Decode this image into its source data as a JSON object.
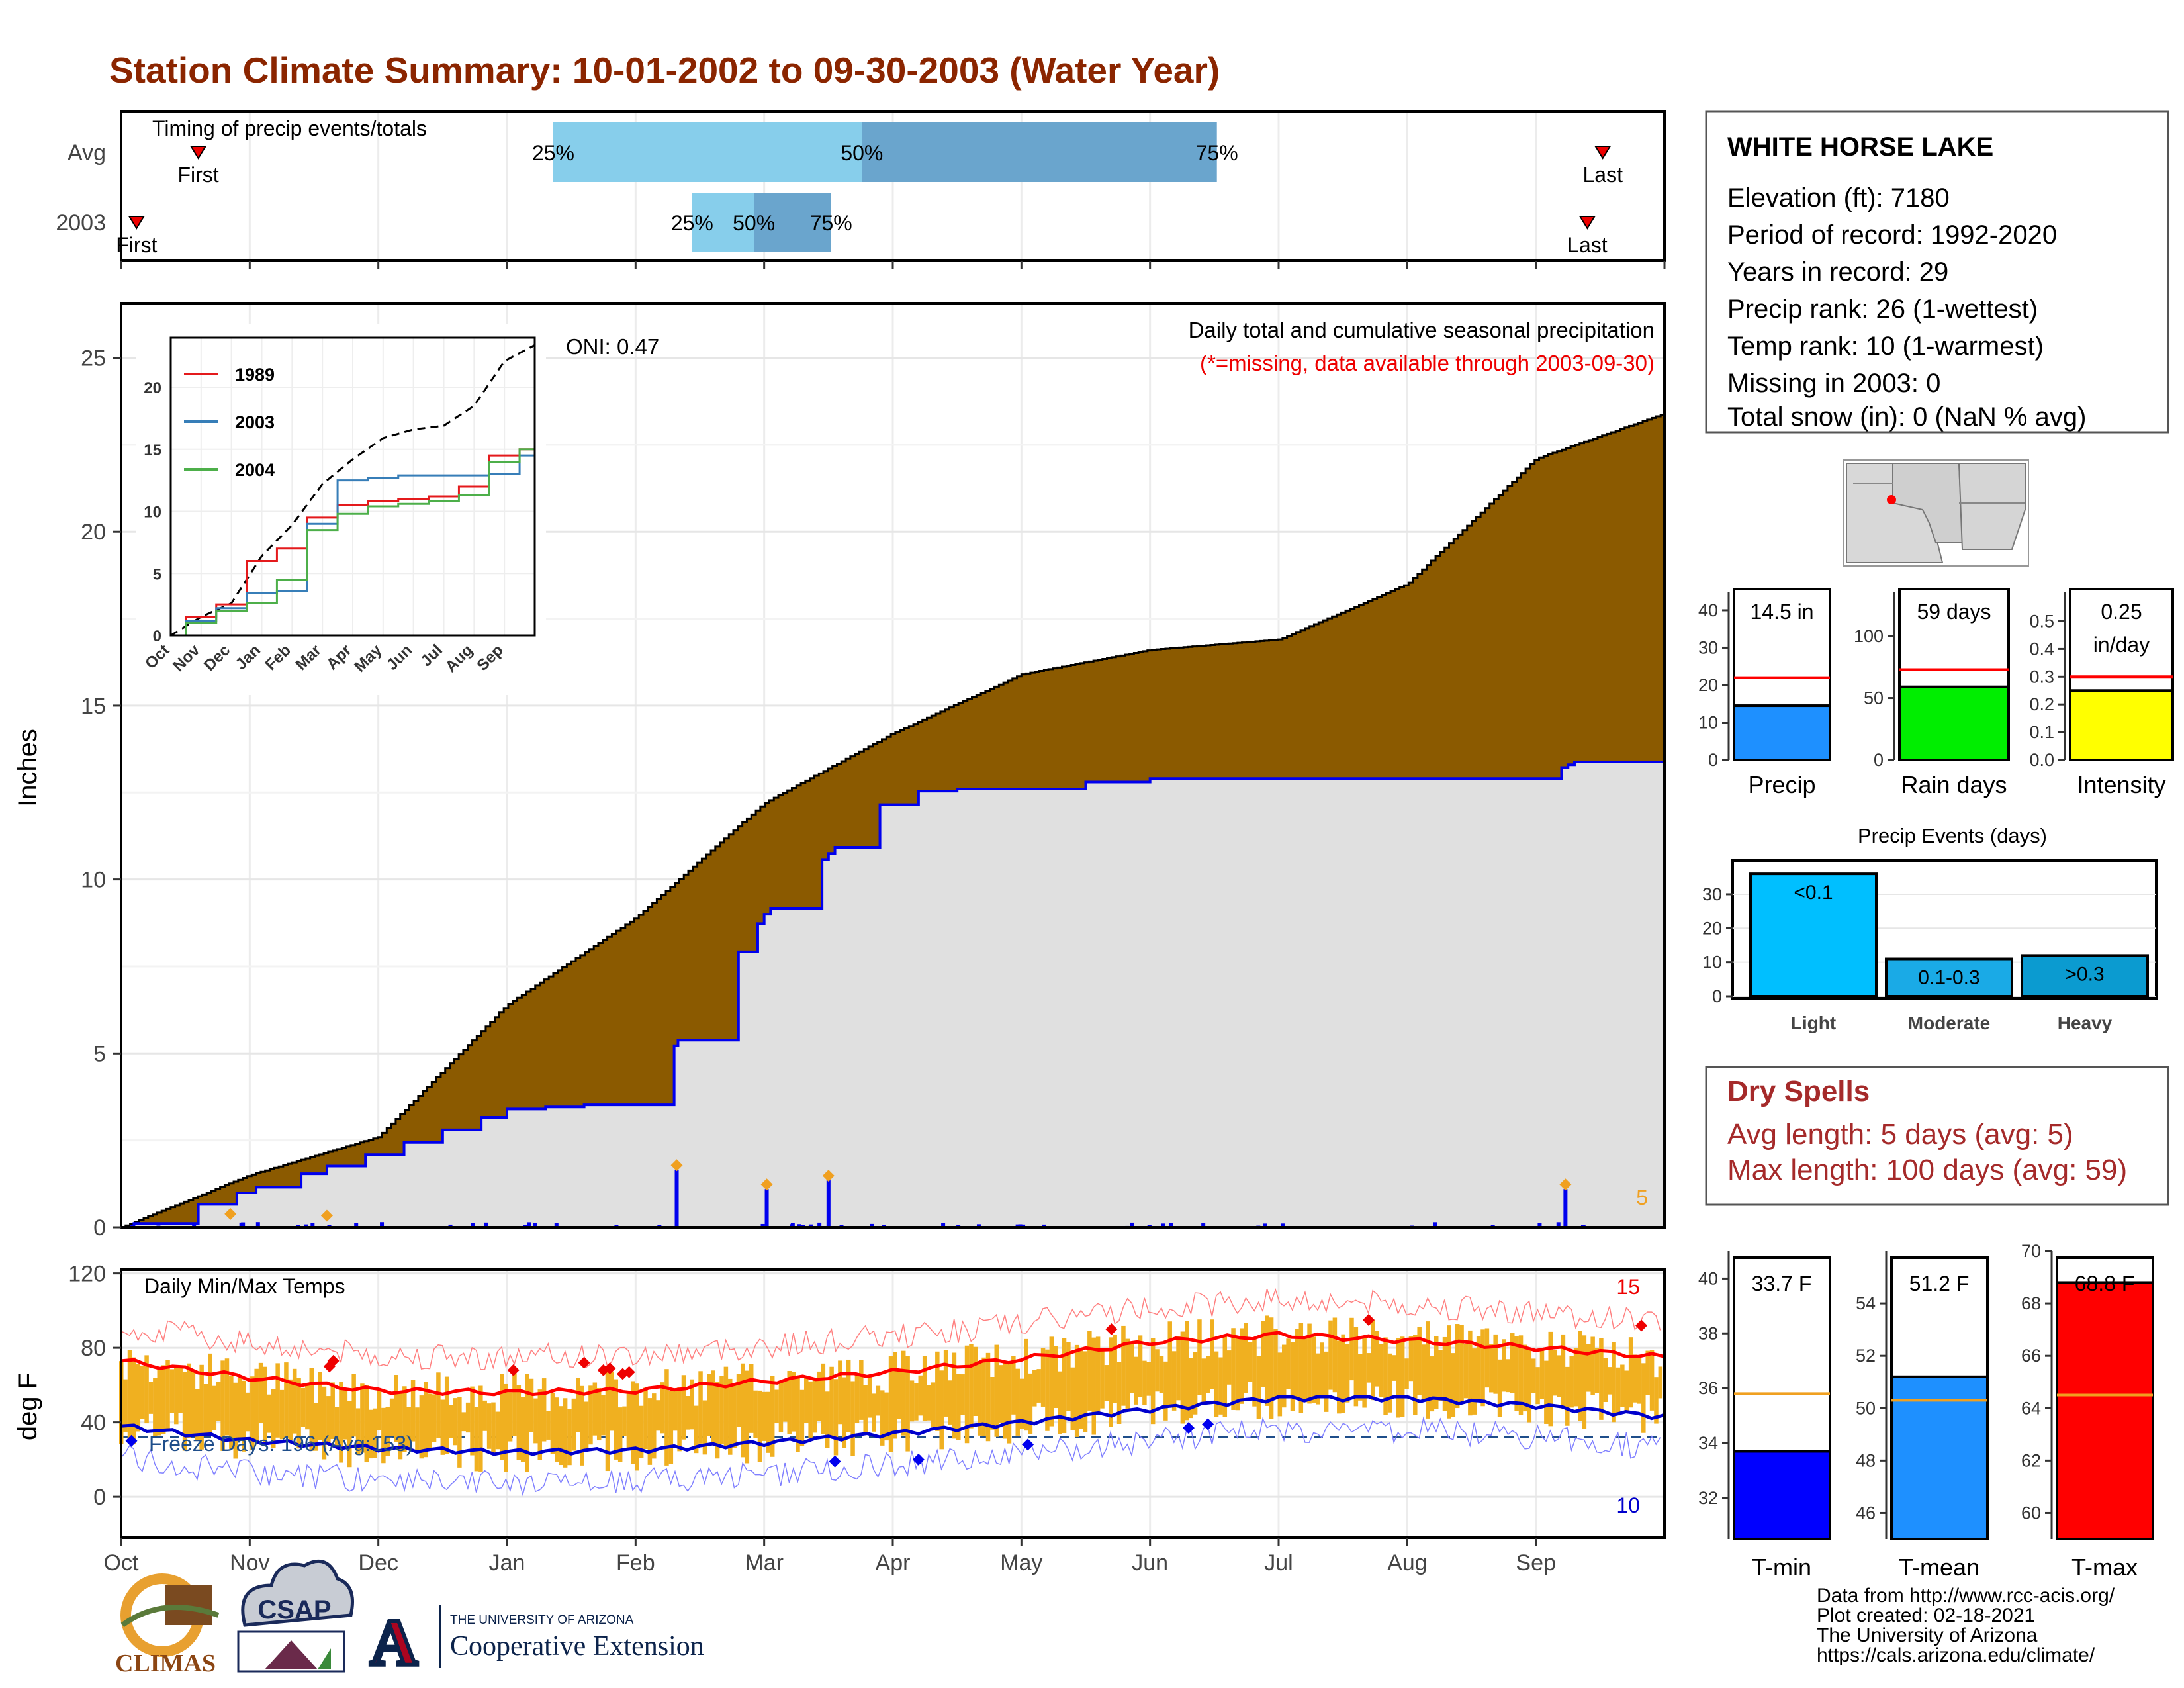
{
  "title": "Station Climate Summary: 10-01-2002 to 09-30-2003 (Water Year)",
  "months": [
    "Oct",
    "Nov",
    "Dec",
    "Jan",
    "Feb",
    "Mar",
    "Apr",
    "May",
    "Jun",
    "Jul",
    "Aug",
    "Sep"
  ],
  "timing": {
    "label": "Timing of precip events/totals",
    "rows": [
      "Avg",
      "2003"
    ],
    "first_label": "First",
    "last_label": "Last",
    "pct_labels": [
      "25%",
      "50%",
      "75%"
    ]
  },
  "precip": {
    "ylabel": "Inches",
    "header": "Daily total and cumulative seasonal precipitation",
    "subheader": "(*=missing, data available through 2003-09-30)",
    "corner_count": "5",
    "oni": "ONI: 0.47"
  },
  "inset": {
    "legend": [
      "1989",
      "2003",
      "2004"
    ],
    "months": [
      "Oct",
      "Nov",
      "Dec",
      "Jan",
      "Feb",
      "Mar",
      "Apr",
      "May",
      "Jun",
      "Jul",
      "Aug",
      "Sep"
    ]
  },
  "temps": {
    "ylabel": "deg F",
    "label": "Daily Min/Max Temps",
    "freeze": "Freeze Days: 196 (Avg:153)",
    "count_hi": "15",
    "count_lo": "10"
  },
  "station": {
    "name": "WHITE HORSE LAKE",
    "lines": [
      "Elevation (ft): 7180",
      "Period of record: 1992-2020",
      "Years in record: 29",
      "Precip rank: 26 (1-wettest)",
      "Temp rank: 10 (1-warmest)",
      "Missing in 2003: 0",
      "Total snow (in): 0 (NaN % avg)"
    ]
  },
  "mini_bars": {
    "precip": {
      "label": "Precip",
      "value_label": "14.5 in"
    },
    "rain_days": {
      "label": "Rain days",
      "value_label": "59 days"
    },
    "intensity": {
      "label": "Intensity",
      "value_label": "0.25",
      "unit": "in/day"
    }
  },
  "events": {
    "title": "Precip Events (days)",
    "cats": [
      "Light",
      "Moderate",
      "Heavy"
    ],
    "labels": [
      "<0.1",
      "0.1-0.3",
      ">0.3"
    ]
  },
  "dry_spells": {
    "title": "Dry Spells",
    "avg": "Avg length: 5 days (avg: 5)",
    "max": "Max length: 100 days (avg: 59)"
  },
  "temp_bars": {
    "tmin": {
      "label": "T-min",
      "value_label": "33.7 F"
    },
    "tmean": {
      "label": "T-mean",
      "value_label": "51.2 F"
    },
    "tmax": {
      "label": "T-max",
      "value_label": "68.8 F"
    }
  },
  "credits": [
    "Data from http://www.rcc-acis.org/",
    "Plot created: 02-18-2021",
    "The University of Arizona",
    "https://cals.arizona.edu/climate/"
  ],
  "logos": {
    "climas": "CLIMAS",
    "csap": "CSAP",
    "ua_small": "THE UNIVERSITY OF ARIZONA",
    "ua_big": "Cooperative Extension",
    "ua_letter": "A"
  },
  "colors": {
    "title": "#8b2500",
    "avg_fill": "#8b5a00",
    "year_fill": "#e0e0e0",
    "year_line": "#0000ee",
    "temp_bar": "#f0b020",
    "tmax_line": "#ff0000",
    "tmin_line": "#0000cc",
    "precip_bar": "#1e90ff",
    "rain_bar": "#00ee00",
    "int_bar": "#ffff00",
    "light": "#00bfff",
    "moderate": "#1aaae6",
    "heavy": "#0b9bd0",
    "tmin_bar": "#0000ff",
    "tmean_bar": "#1e90ff",
    "tmax_bar": "#ff0000",
    "avg_line": "#f0a020"
  },
  "chart_data": [
    {
      "type": "bar",
      "title": "Timing of precip events/totals",
      "categories": [
        "Avg",
        "2003"
      ],
      "first_day_frac": [
        0.05,
        0.01
      ],
      "last_day_frac": [
        0.96,
        0.95
      ],
      "pct25_frac": [
        0.28,
        0.37
      ],
      "pct50_frac": [
        0.48,
        0.41
      ],
      "pct75_frac": [
        0.71,
        0.46
      ]
    },
    {
      "type": "area",
      "title": "Daily total and cumulative seasonal precipitation",
      "ylabel": "Inches",
      "ylim": [
        0,
        26
      ],
      "x_months": [
        "Oct",
        "Nov",
        "Dec",
        "Jan",
        "Feb",
        "Mar",
        "Apr",
        "May",
        "Jun",
        "Jul",
        "Aug",
        "Sep",
        "Oct"
      ],
      "avg_cumulative": [
        0.0,
        1.5,
        2.6,
        6.4,
        8.9,
        12.2,
        14.2,
        15.9,
        16.6,
        16.9,
        18.5,
        22.1,
        23.4
      ],
      "year_cumulative": [
        0.0,
        1.1,
        2.2,
        3.4,
        3.6,
        9.0,
        12.5,
        12.7,
        12.9,
        12.9,
        12.9,
        12.9,
        14.5
      ],
      "daily_spikes": [
        {
          "month": 4.32,
          "value": 1.65
        },
        {
          "month": 5.02,
          "value": 1.1
        },
        {
          "month": 5.5,
          "value": 1.35
        },
        {
          "month": 11.23,
          "value": 1.1
        }
      ]
    },
    {
      "type": "line",
      "title": "Daily Min/Max Temps",
      "ylabel": "deg F",
      "ylim": [
        -22,
        122
      ],
      "x_months": [
        "Oct",
        "Nov",
        "Dec",
        "Jan",
        "Feb",
        "Mar",
        "Apr",
        "May",
        "Jun",
        "Jul",
        "Aug",
        "Sep",
        "Oct"
      ],
      "tmax_avg": [
        73,
        64,
        57,
        56,
        57,
        62,
        67,
        74,
        83,
        87,
        84,
        80,
        75
      ],
      "tmin_avg": [
        38,
        30,
        26,
        24,
        25,
        29,
        34,
        40,
        47,
        53,
        53,
        49,
        43
      ],
      "freeze_line": 32
    },
    {
      "type": "bar",
      "title": "Precip",
      "categories": [
        "Precip"
      ],
      "values": [
        14.5
      ],
      "avg": [
        22
      ],
      "ylim": [
        0,
        43
      ]
    },
    {
      "type": "bar",
      "title": "Rain days",
      "categories": [
        "Rain days"
      ],
      "values": [
        59
      ],
      "avg": [
        73
      ],
      "ylim": [
        0,
        130
      ]
    },
    {
      "type": "bar",
      "title": "Intensity",
      "categories": [
        "Intensity"
      ],
      "values": [
        0.25
      ],
      "avg": [
        0.3
      ],
      "ylim": [
        0,
        0.58
      ]
    },
    {
      "type": "bar",
      "title": "Precip Events (days)",
      "categories": [
        "Light",
        "Moderate",
        "Heavy"
      ],
      "values": [
        36,
        11,
        12
      ],
      "ylim": [
        0,
        37
      ]
    },
    {
      "type": "bar",
      "title": "T-min",
      "categories": [
        "T-min"
      ],
      "values": [
        33.7
      ],
      "avg": [
        35.8
      ],
      "ylim": [
        30.5,
        41
      ]
    },
    {
      "type": "bar",
      "title": "T-mean",
      "categories": [
        "T-mean"
      ],
      "values": [
        51.2
      ],
      "avg": [
        50.3
      ],
      "ylim": [
        45,
        56
      ]
    },
    {
      "type": "bar",
      "title": "T-max",
      "categories": [
        "T-max"
      ],
      "values": [
        68.8
      ],
      "avg": [
        64.5
      ],
      "ylim": [
        59,
        70
      ]
    }
  ]
}
